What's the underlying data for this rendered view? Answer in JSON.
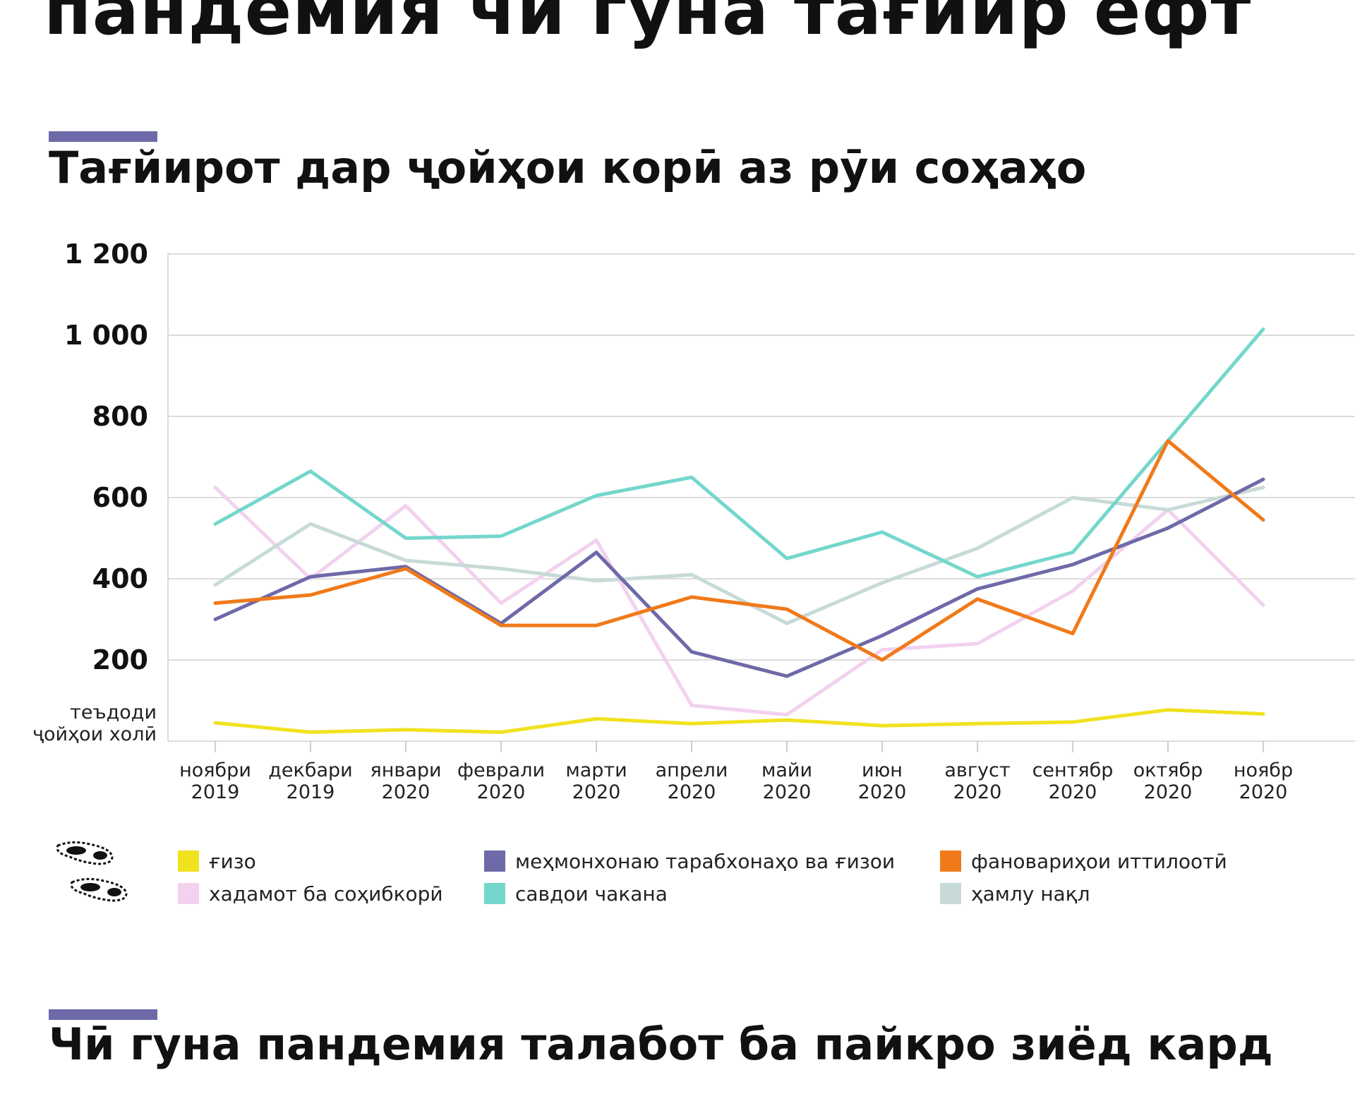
{
  "page": {
    "top_title": "пандемия чӣ гуна тағйир ёфт",
    "section_title": "Тағйирот дар ҷойҳои корӣ аз рӯи соҳаҳо",
    "bottom_title": "Чӣ гуна пандемия талабот ба пайкро зиёд кард",
    "accent_color": "#6e69a8"
  },
  "chart_data": {
    "type": "line",
    "title": "Тағйирот дар ҷойҳои корӣ аз рӯи соҳаҳо",
    "ylabel": "теъдоди ҷойҳои холӣ",
    "ylim": [
      0,
      1200
    ],
    "yticks": [
      {
        "value": 200,
        "label": "200"
      },
      {
        "value": 400,
        "label": "400"
      },
      {
        "value": 600,
        "label": "600"
      },
      {
        "value": 800,
        "label": "800"
      },
      {
        "value": 1000,
        "label": "1 000"
      },
      {
        "value": 1200,
        "label": "1 200"
      }
    ],
    "grid": true,
    "categories": [
      {
        "month": "ноябри",
        "year": "2019"
      },
      {
        "month": "декбари",
        "year": "2019"
      },
      {
        "month": "январи",
        "year": "2020"
      },
      {
        "month": "феврали",
        "year": "2020"
      },
      {
        "month": "марти",
        "year": "2020"
      },
      {
        "month": "апрели",
        "year": "2020"
      },
      {
        "month": "майи",
        "year": "2020"
      },
      {
        "month": "июн",
        "year": "2020"
      },
      {
        "month": "август",
        "year": "2020"
      },
      {
        "month": "сентябр",
        "year": "2020"
      },
      {
        "month": "октябр",
        "year": "2020"
      },
      {
        "month": "ноябр",
        "year": "2020"
      }
    ],
    "series": [
      {
        "name": "хадамот ба соҳибкорӣ",
        "color": "#f2d2ef",
        "values": [
          625,
          400,
          580,
          340,
          495,
          88,
          65,
          225,
          240,
          370,
          570,
          335
        ]
      },
      {
        "name": "ҳамлу нақл",
        "color": "#c7dad7",
        "values": [
          385,
          535,
          445,
          425,
          395,
          410,
          290,
          390,
          475,
          600,
          570,
          625
        ]
      },
      {
        "name": "савдои чакана",
        "color": "#74d7cb",
        "values": [
          535,
          665,
          500,
          505,
          605,
          650,
          450,
          515,
          405,
          465,
          740,
          1015
        ]
      },
      {
        "name": "меҳмонхонаю тарабхонаҳо ва ғизои",
        "color": "#6e69a8",
        "values": [
          300,
          405,
          430,
          290,
          465,
          220,
          160,
          260,
          375,
          435,
          525,
          645
        ]
      },
      {
        "name": "фановариҳои иттилоотӣ",
        "color": "#f07a1a",
        "values": [
          340,
          360,
          425,
          285,
          285,
          355,
          325,
          200,
          350,
          265,
          740,
          545
        ]
      },
      {
        "name": "ғизо",
        "color": "#f0e21f",
        "values": [
          45,
          22,
          28,
          22,
          55,
          43,
          52,
          38,
          43,
          47,
          77,
          67
        ]
      }
    ],
    "legend": [
      {
        "label": "ғизо",
        "color": "#f0e21f"
      },
      {
        "label": "меҳмонхонаю тарабхонаҳо ва ғизои",
        "color": "#6e69a8"
      },
      {
        "label": "фановариҳои иттилоотӣ",
        "color": "#f07a1a"
      },
      {
        "label": "хадамот ба соҳибкорӣ",
        "color": "#f2d2ef"
      },
      {
        "label": "савдои чакана",
        "color": "#74d7cb"
      },
      {
        "label": "ҳамлу нақл",
        "color": "#c7dad7"
      }
    ],
    "legend_position": "bottom"
  },
  "icons": {
    "legend_decoration": "footprints-icon"
  }
}
